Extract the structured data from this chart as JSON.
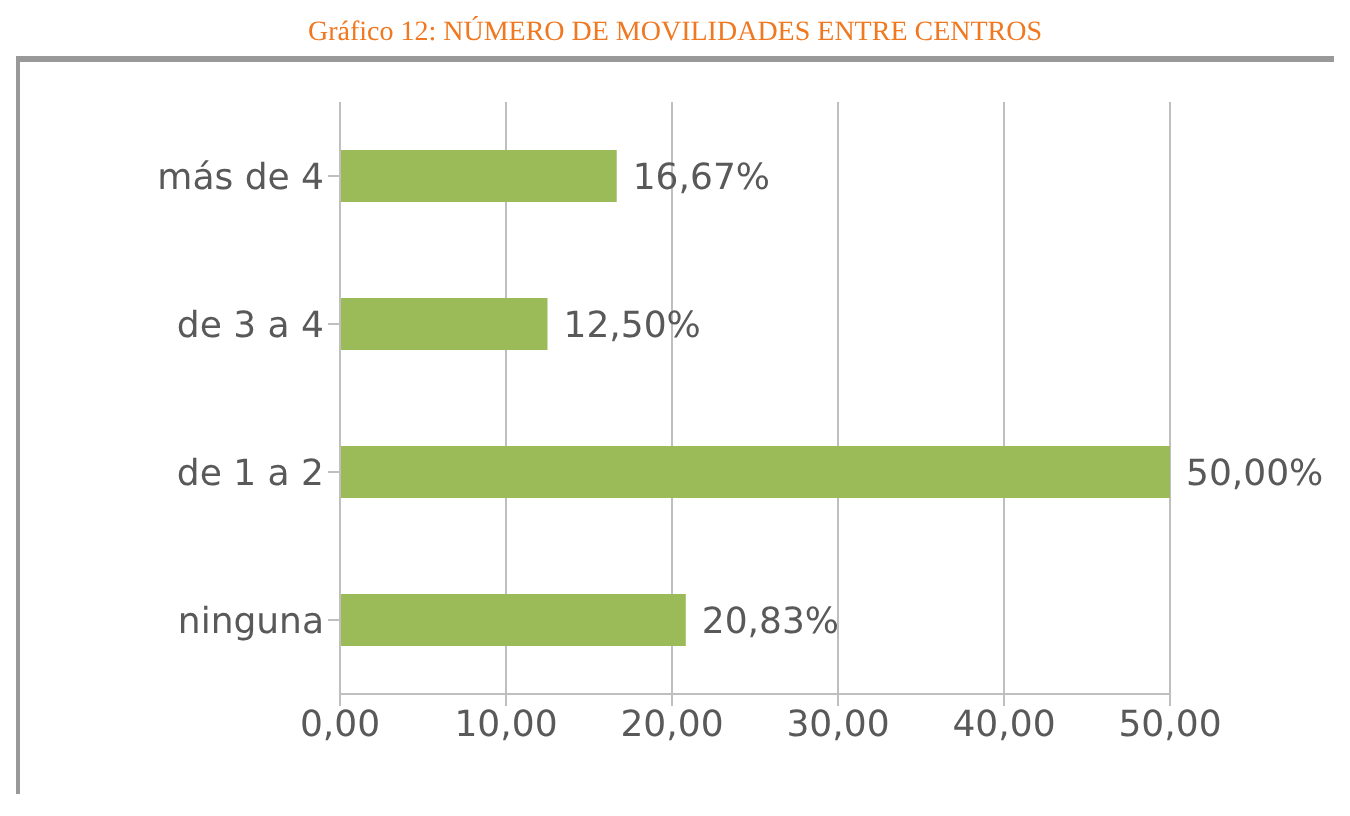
{
  "chart_data": {
    "type": "bar",
    "orientation": "horizontal",
    "title": "Gráfico 12: NÚMERO DE MOVILIDADES ENTRE CENTROS",
    "categories": [
      "más de 4",
      "de 3 a 4",
      "de 1 a 2",
      "ninguna"
    ],
    "values": [
      16.67,
      12.5,
      50,
      20.83
    ],
    "value_labels": [
      "16,67%",
      "12,50%",
      "50,00%",
      "20,83%"
    ],
    "color": "#9bbb59",
    "xlim": [
      0,
      50
    ],
    "xticks": [
      {
        "value": 0,
        "label": "0,00"
      },
      {
        "value": 10,
        "label": "10,00"
      },
      {
        "value": 20,
        "label": "20,00"
      },
      {
        "value": 30,
        "label": "30,00"
      },
      {
        "value": 40,
        "label": "40,00"
      },
      {
        "value": 50,
        "label": "50,00"
      }
    ],
    "grid": "x"
  }
}
